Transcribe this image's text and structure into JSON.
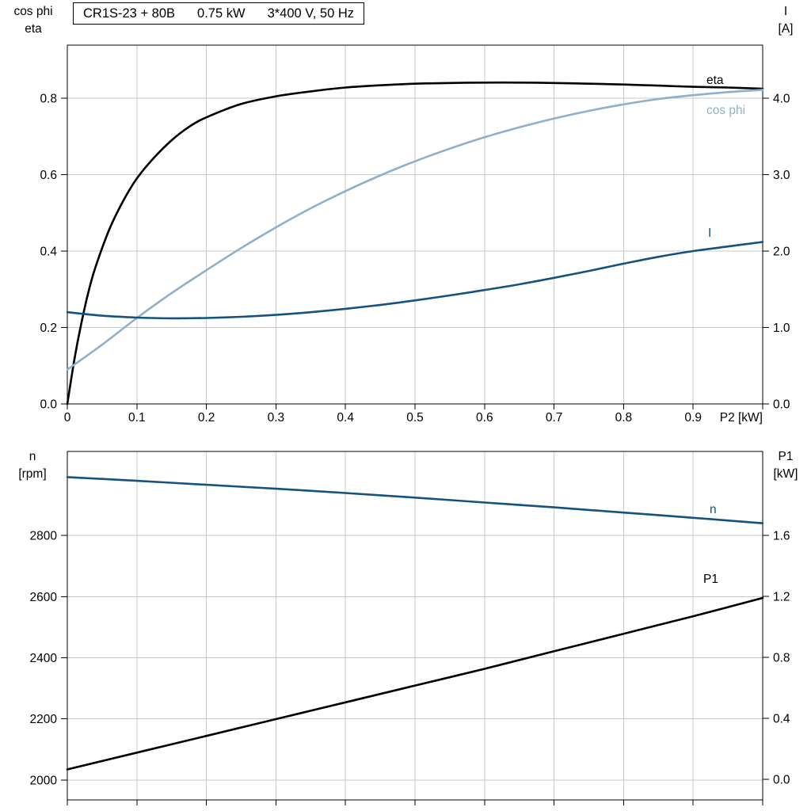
{
  "header": {
    "model": "CR1S-23 + 80B",
    "power": "0.75 kW",
    "supply": "3*400 V, 50 Hz"
  },
  "colors": {
    "eta": "#000000",
    "cos_phi": "#8fafca",
    "current": "#14537f",
    "speed": "#14537f",
    "p1": "#000000",
    "grid": "#c9c9c9",
    "axis": "#000000"
  },
  "corner_labels": {
    "top_left": [
      "cos phi",
      "eta"
    ],
    "top_right": [
      "I",
      "[A]"
    ],
    "bottom_left": [
      "n",
      "[rpm]"
    ],
    "bottom_right": [
      "P1",
      "[kW]"
    ]
  },
  "curve_labels": {
    "eta": "eta",
    "cos_phi": "cos phi",
    "current": "I",
    "speed": "n",
    "p1": "P1"
  },
  "chart_data": [
    {
      "type": "line",
      "title": "Efficiency, power factor and current vs shaft power P2",
      "x_axis": {
        "min": 0,
        "max": 1.0,
        "ticks": [
          0,
          0.1,
          0.2,
          0.3,
          0.4,
          0.5,
          0.6,
          0.7,
          0.8,
          0.9,
          1.0
        ],
        "tick_labels": [
          "0",
          "0.1",
          "0.2",
          "0.3",
          "0.4",
          "0.5",
          "0.6",
          "0.7",
          "0.8",
          "0.9",
          ""
        ],
        "unit_label": "P2 [kW]"
      },
      "left_axis": {
        "label": "cos phi / eta",
        "min": 0,
        "max": 0.939,
        "ticks": [
          0,
          0.2,
          0.4,
          0.6,
          0.8
        ],
        "tick_labels": [
          "0.0",
          "0.2",
          "0.4",
          "0.6",
          "0.8"
        ]
      },
      "right_axis": {
        "label": "I [A]",
        "min": 0,
        "max": 4.695,
        "ticks": [
          0,
          1.0,
          2.0,
          3.0,
          4.0
        ],
        "tick_labels": [
          "0.0",
          "1.0",
          "2.0",
          "3.0",
          "4.0"
        ]
      },
      "series": [
        {
          "name": "eta",
          "axis": "left",
          "color_key": "eta",
          "x": [
            0,
            0.01,
            0.02,
            0.03,
            0.04,
            0.06,
            0.08,
            0.1,
            0.125,
            0.15,
            0.175,
            0.2,
            0.25,
            0.3,
            0.35,
            0.4,
            0.45,
            0.5,
            0.55,
            0.6,
            0.65,
            0.7,
            0.75,
            0.8,
            0.85,
            0.9,
            0.95,
            1.0
          ],
          "y": [
            0,
            0.115,
            0.21,
            0.29,
            0.355,
            0.455,
            0.53,
            0.59,
            0.645,
            0.69,
            0.725,
            0.75,
            0.785,
            0.805,
            0.818,
            0.828,
            0.834,
            0.838,
            0.84,
            0.841,
            0.841,
            0.84,
            0.838,
            0.836,
            0.833,
            0.83,
            0.828,
            0.825
          ]
        },
        {
          "name": "cos-phi",
          "axis": "left",
          "color_key": "cos_phi",
          "x": [
            0,
            0.05,
            0.1,
            0.15,
            0.2,
            0.25,
            0.3,
            0.35,
            0.4,
            0.45,
            0.5,
            0.55,
            0.6,
            0.65,
            0.7,
            0.75,
            0.8,
            0.85,
            0.9,
            0.95,
            1.0
          ],
          "y": [
            0.09,
            0.155,
            0.225,
            0.29,
            0.35,
            0.408,
            0.462,
            0.512,
            0.557,
            0.598,
            0.635,
            0.668,
            0.698,
            0.724,
            0.747,
            0.767,
            0.784,
            0.798,
            0.808,
            0.816,
            0.822
          ]
        },
        {
          "name": "current",
          "axis": "right",
          "color_key": "current",
          "x": [
            0,
            0.05,
            0.1,
            0.15,
            0.2,
            0.25,
            0.3,
            0.35,
            0.4,
            0.45,
            0.5,
            0.55,
            0.6,
            0.65,
            0.7,
            0.75,
            0.8,
            0.85,
            0.9,
            0.95,
            1.0
          ],
          "y": [
            1.2,
            1.155,
            1.13,
            1.12,
            1.125,
            1.14,
            1.165,
            1.2,
            1.245,
            1.295,
            1.355,
            1.42,
            1.49,
            1.565,
            1.65,
            1.74,
            1.835,
            1.925,
            2.0,
            2.06,
            2.12
          ]
        }
      ]
    },
    {
      "type": "line",
      "title": "Speed and input power vs shaft power P2",
      "x_axis": {
        "min": 0,
        "max": 1.0,
        "ticks": [
          0,
          0.1,
          0.2,
          0.3,
          0.4,
          0.5,
          0.6,
          0.7,
          0.8,
          0.9,
          1.0
        ],
        "tick_labels": [],
        "unit_label": ""
      },
      "left_axis": {
        "label": "n [rpm]",
        "min": 1935,
        "max": 3075,
        "ticks": [
          2000,
          2200,
          2400,
          2600,
          2800
        ],
        "tick_labels": [
          "2000",
          "2200",
          "2400",
          "2600",
          "2800"
        ]
      },
      "right_axis": {
        "label": "P1 [kW]",
        "min": -0.135,
        "max": 2.151,
        "ticks": [
          0,
          0.4,
          0.8,
          1.2,
          1.6
        ],
        "tick_labels": [
          "0.0",
          "0.4",
          "0.8",
          "1.2",
          "1.6"
        ]
      },
      "series": [
        {
          "name": "speed",
          "axis": "left",
          "color_key": "speed",
          "x": [
            0,
            0.1,
            0.2,
            0.3,
            0.4,
            0.5,
            0.6,
            0.7,
            0.8,
            0.9,
            1.0
          ],
          "y": [
            2991,
            2979,
            2966,
            2953,
            2939,
            2924,
            2908,
            2892,
            2875,
            2858,
            2840
          ]
        },
        {
          "name": "p1",
          "axis": "right",
          "color_key": "p1",
          "x": [
            0,
            0.1,
            0.2,
            0.3,
            0.4,
            0.5,
            0.6,
            0.7,
            0.8,
            0.9,
            1.0
          ],
          "y": [
            0.065,
            0.175,
            0.285,
            0.395,
            0.505,
            0.615,
            0.725,
            0.84,
            0.955,
            1.07,
            1.19
          ]
        }
      ]
    }
  ]
}
